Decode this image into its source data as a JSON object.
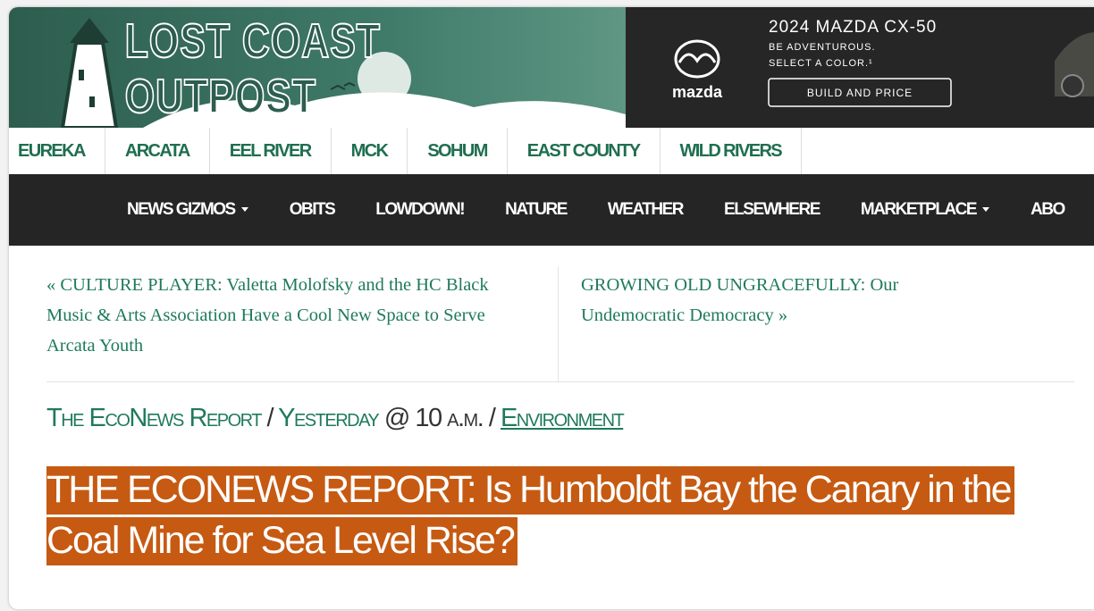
{
  "header": {
    "logo_line1": "LOST COAST",
    "logo_line2": "OUTPOST"
  },
  "ad": {
    "brand": "mazda",
    "model": "2024 MAZDA CX-50",
    "tagline1": "BE ADVENTUROUS.",
    "tagline2": "SELECT A COLOR.¹",
    "button": "BUILD AND PRICE"
  },
  "regions": [
    "EUREKA",
    "ARCATA",
    "EEL RIVER",
    "MCK",
    "SOHUM",
    "EAST COUNTY",
    "WILD RIVERS"
  ],
  "nav": [
    "NEWS GIZMOS",
    "OBITS",
    "LOWDOWN!",
    "NATURE",
    "WEATHER",
    "ELSEWHERE",
    "MARKETPLACE",
    "ABO"
  ],
  "prev_link": "« CULTURE PLAYER: Valetta Molofsky and the HC Black Music & Arts Association Have a Cool New Space to Serve Arcata Youth",
  "next_link": "GROWING OLD UNGRACEFULLY: Our Undemocratic Democracy »",
  "byline": {
    "author": "The EcoNews Report",
    "separator1": "/",
    "date": "Yesterday",
    "time": "@ 10 a.m.",
    "separator2": "/",
    "category": "Environment"
  },
  "headline": "THE ECONEWS REPORT: Is Humboldt Bay the Canary in the Coal Mine for Sea Level Rise?"
}
